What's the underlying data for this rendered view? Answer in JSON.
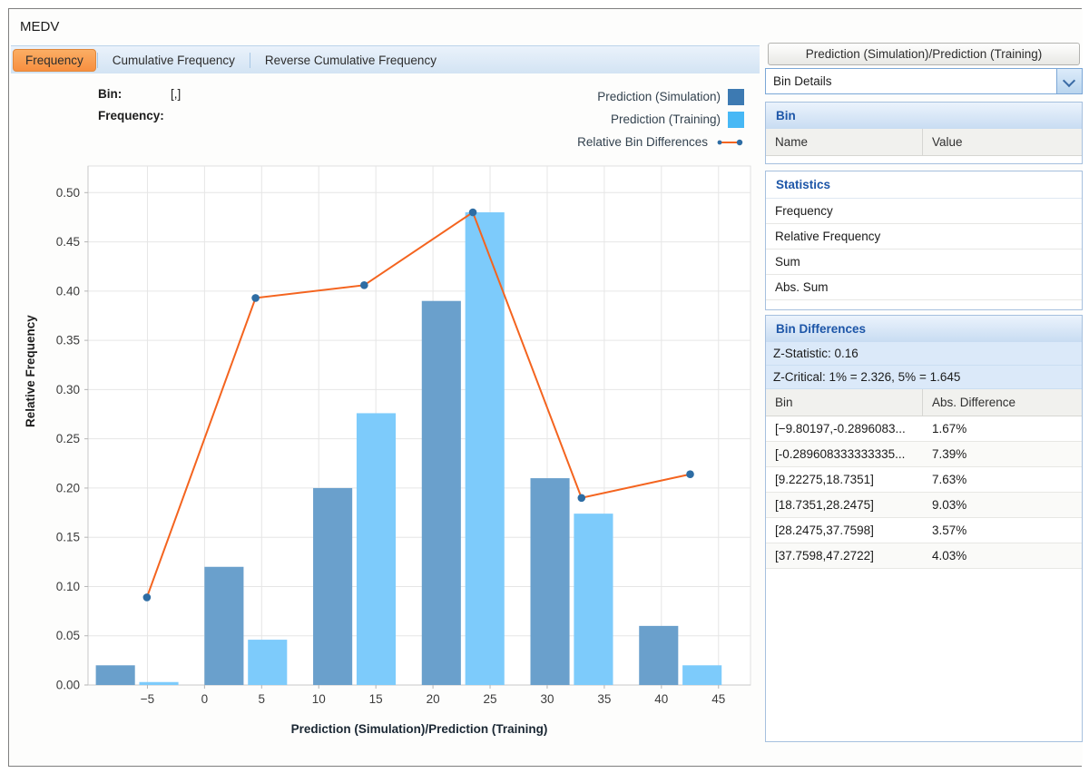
{
  "window": {
    "title": "MEDV",
    "close_glyph": "✕"
  },
  "tabs": [
    {
      "label": "Frequency",
      "active": true
    },
    {
      "label": "Cumulative Frequency",
      "active": false
    },
    {
      "label": "Reverse Cumulative Frequency",
      "active": false
    }
  ],
  "hover_readout": {
    "bin_label": "Bin:",
    "bin_value": "[,]",
    "frequency_label": "Frequency:",
    "frequency_value": ""
  },
  "legend": [
    {
      "label": "Prediction (Simulation)",
      "type": "square",
      "color": "#3d7ab2"
    },
    {
      "label": "Prediction (Training)",
      "type": "square",
      "color": "#47b8f5"
    },
    {
      "label": "Relative Bin Differences",
      "type": "line-dot",
      "color": "#f4641f",
      "marker_color": "#2e6da4"
    }
  ],
  "chart_data": {
    "type": "bar",
    "title": "",
    "xlabel": "Prediction (Simulation)/Prediction (Training)",
    "ylabel": "Relative Frequency",
    "xlim": [
      -10.2,
      47.8
    ],
    "ylim": [
      0,
      0.527
    ],
    "x_ticks": [
      -5,
      0,
      5,
      10,
      15,
      20,
      25,
      30,
      35,
      40,
      45
    ],
    "y_ticks": [
      0.0,
      0.05,
      0.1,
      0.15,
      0.2,
      0.25,
      0.3,
      0.35,
      0.4,
      0.45,
      0.5
    ],
    "grid": true,
    "legend_position": "top-right",
    "bin_edges": [
      -9.80197,
      -0.289608333333335,
      9.22275,
      18.7351,
      28.2475,
      37.7598,
      47.2722
    ],
    "series": [
      {
        "name": "Prediction (Simulation)",
        "color": "#6aa0cc",
        "values": [
          0.02,
          0.12,
          0.2,
          0.39,
          0.21,
          0.06
        ]
      },
      {
        "name": "Prediction (Training)",
        "color": "#7dcbfb",
        "values": [
          0.003,
          0.046,
          0.276,
          0.48,
          0.174,
          0.02
        ]
      }
    ],
    "line_series": {
      "name": "Relative Bin Differences",
      "color": "#f4641f",
      "marker_color": "#2e6da4",
      "values": [
        0.089,
        0.393,
        0.406,
        0.48,
        0.19,
        0.214
      ]
    }
  },
  "panel": {
    "header": "Prediction (Simulation)/Prediction (Training)",
    "view_selector": {
      "value": "Bin Details"
    },
    "bin_section": {
      "title": "Bin",
      "columns": [
        "Name",
        "Value"
      ],
      "rows": []
    },
    "statistics_section": {
      "title": "Statistics",
      "rows": [
        "Frequency",
        "Relative Frequency",
        "Sum",
        "Abs. Sum"
      ]
    },
    "bin_differences_section": {
      "title": "Bin Differences",
      "z_statistic": "Z-Statistic: 0.16",
      "z_critical": "Z-Critical: 1% = 2.326, 5% = 1.645",
      "columns": [
        "Bin",
        "Abs. Difference"
      ],
      "rows": [
        {
          "bin": "[−9.80197,-0.2896083...",
          "abs_difference": "1.67%"
        },
        {
          "bin": "[-0.289608333333335...",
          "abs_difference": "7.39%"
        },
        {
          "bin": "[9.22275,18.7351]",
          "abs_difference": "7.63%"
        },
        {
          "bin": "[18.7351,28.2475]",
          "abs_difference": "9.03%"
        },
        {
          "bin": "[28.2475,37.7598]",
          "abs_difference": "3.57%"
        },
        {
          "bin": "[37.7598,47.2722]",
          "abs_difference": "4.03%"
        }
      ]
    }
  }
}
